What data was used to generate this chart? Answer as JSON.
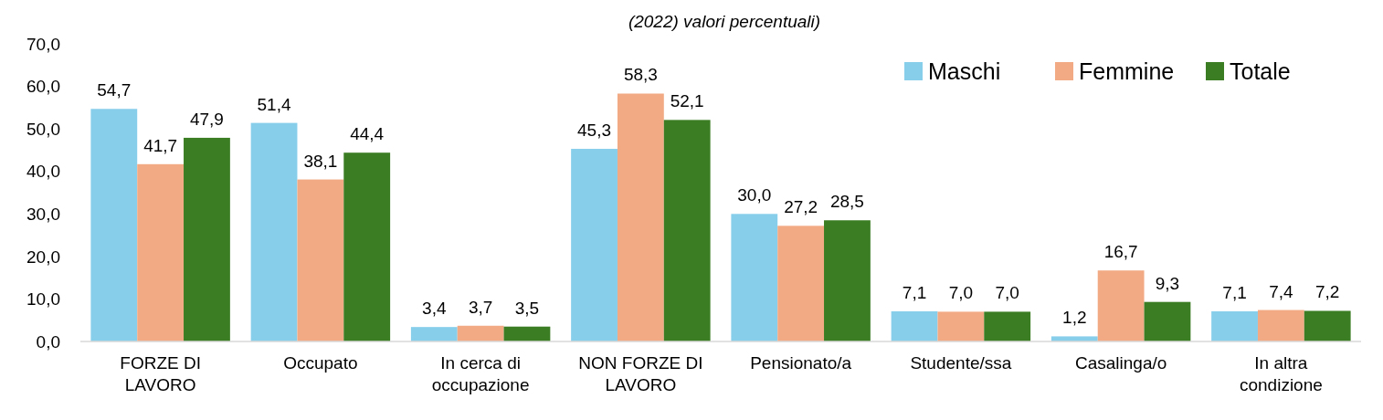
{
  "chart_data": {
    "type": "bar",
    "subtitle": "(2022) valori percentuali)",
    "categories": [
      "FORZE DI LAVORO",
      "Occupato",
      "In cerca di occupazione",
      "NON FORZE DI LAVORO",
      "Pensionato/a",
      "Studente/ssa",
      "Casalinga/o",
      "In altra condizione"
    ],
    "series": [
      {
        "name": "Maschi",
        "color": "#87ceeb",
        "values": [
          54.7,
          51.4,
          3.4,
          45.3,
          30.0,
          7.1,
          1.2,
          7.1
        ],
        "value_labels": [
          "54,7",
          "51,4",
          "3,4",
          "45,3",
          "30,0",
          "7,1",
          "1,2",
          "7,1"
        ]
      },
      {
        "name": "Femmine",
        "color": "#f2aa84",
        "values": [
          41.7,
          38.1,
          3.7,
          58.3,
          27.2,
          7.0,
          16.7,
          7.4
        ],
        "value_labels": [
          "41,7",
          "38,1",
          "3,7",
          "58,3",
          "27,2",
          "7,0",
          "16,7",
          "7,4"
        ]
      },
      {
        "name": "Totale",
        "color": "#3a7d22",
        "values": [
          47.9,
          44.4,
          3.5,
          52.1,
          28.5,
          7.0,
          9.3,
          7.2
        ],
        "value_labels": [
          "47,9",
          "44,4",
          "3,5",
          "52,1",
          "28,5",
          "7,0",
          "9,3",
          "7,2"
        ]
      }
    ],
    "ylim": [
      0,
      70
    ],
    "yticks": [
      {
        "value": 0,
        "label": "0,0"
      },
      {
        "value": 10,
        "label": "10,0"
      },
      {
        "value": 20,
        "label": "20,0"
      },
      {
        "value": 30,
        "label": "30,0"
      },
      {
        "value": 40,
        "label": "40,0"
      },
      {
        "value": 50,
        "label": "50,0"
      },
      {
        "value": 60,
        "label": "60,0"
      },
      {
        "value": 70,
        "label": "70,0"
      }
    ],
    "grid": false,
    "legend": "top right"
  }
}
